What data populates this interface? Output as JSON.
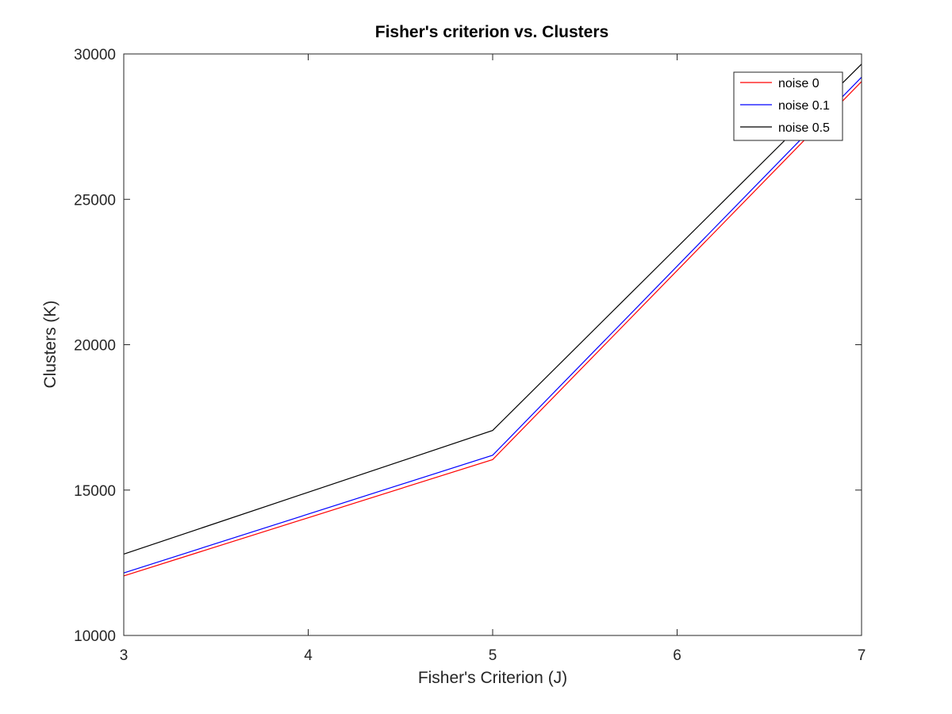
{
  "chart_data": {
    "type": "line",
    "title": "Fisher's criterion vs. Clusters",
    "xlabel": "Fisher's Criterion (J)",
    "ylabel": "Clusters (K)",
    "xlim": [
      3,
      7
    ],
    "ylim": [
      10000,
      30000
    ],
    "xticks": [
      3,
      4,
      5,
      6,
      7
    ],
    "yticks": [
      10000,
      15000,
      20000,
      25000,
      30000
    ],
    "x": [
      3,
      5,
      7
    ],
    "grid": false,
    "legend_position": "top-right",
    "series": [
      {
        "name": "noise 0",
        "color": "#ff0000",
        "values": [
          12050,
          16050,
          29050
        ]
      },
      {
        "name": "noise 0.1",
        "color": "#0000ff",
        "values": [
          12150,
          16200,
          29200
        ]
      },
      {
        "name": "noise 0.5",
        "color": "#000000",
        "values": [
          12800,
          17050,
          29650
        ]
      }
    ]
  }
}
